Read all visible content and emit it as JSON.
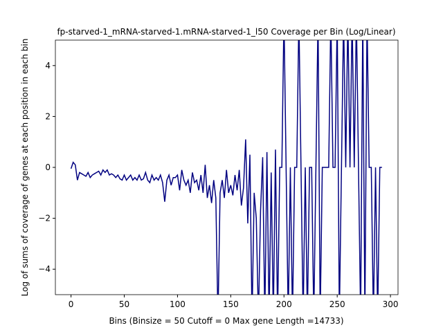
{
  "chart_data": {
    "type": "line",
    "title": "fp-starved-1_mRNA-starved-1.mRNA-starved-1_l50 Coverage per Bin (Log/Linear)",
    "x_label": "Bins  (Binsize = 50 Cutoff = 0 Max gene Length =14733)",
    "y_label": "Log of sums of coverage of genes at each position in each bin",
    "x": [
      0,
      2,
      4,
      6,
      8,
      10,
      12,
      14,
      16,
      18,
      20,
      22,
      24,
      26,
      28,
      30,
      32,
      34,
      36,
      38,
      40,
      42,
      44,
      46,
      48,
      50,
      52,
      54,
      56,
      58,
      60,
      62,
      64,
      66,
      68,
      70,
      72,
      74,
      76,
      78,
      80,
      82,
      84,
      86,
      88,
      90,
      92,
      94,
      96,
      98,
      100,
      102,
      104,
      106,
      108,
      110,
      112,
      114,
      116,
      118,
      120,
      122,
      124,
      126,
      128,
      130,
      132,
      134,
      136,
      138,
      140,
      142,
      144,
      146,
      148,
      150,
      152,
      154,
      156,
      158,
      160,
      162,
      164,
      166,
      168,
      170,
      172,
      174,
      176,
      178,
      180,
      182,
      184,
      186,
      188,
      190,
      192,
      194,
      196,
      198,
      200,
      202,
      204,
      206,
      208,
      210,
      212,
      214,
      216,
      218,
      220,
      222,
      224,
      226,
      228,
      230,
      232,
      234,
      236,
      238,
      240,
      242,
      244,
      246,
      248,
      250,
      252,
      254,
      256,
      258,
      260,
      262,
      264,
      266,
      268,
      270,
      272,
      274,
      276,
      278,
      280,
      282,
      284,
      286,
      288,
      290,
      292
    ],
    "series": [
      {
        "name": "coverage",
        "color": "#000080",
        "values": [
          -0.05,
          0.2,
          0.1,
          -0.5,
          -0.2,
          -0.25,
          -0.3,
          -0.35,
          -0.2,
          -0.4,
          -0.3,
          -0.25,
          -0.2,
          -0.15,
          -0.3,
          -0.1,
          -0.2,
          -0.1,
          -0.3,
          -0.25,
          -0.3,
          -0.4,
          -0.3,
          -0.45,
          -0.5,
          -0.3,
          -0.5,
          -0.4,
          -0.3,
          -0.5,
          -0.4,
          -0.5,
          -0.3,
          -0.5,
          -0.45,
          -0.2,
          -0.5,
          -0.6,
          -0.3,
          -0.5,
          -0.4,
          -0.5,
          -0.3,
          -0.6,
          -1.35,
          -0.5,
          -0.3,
          -0.7,
          -0.4,
          -0.4,
          -0.3,
          -0.9,
          -0.1,
          -0.5,
          -0.7,
          -0.5,
          -1.0,
          -0.2,
          -0.6,
          -0.5,
          -0.9,
          -0.3,
          -1.0,
          0.1,
          -1.2,
          -0.7,
          -1.4,
          -0.5,
          -1.2,
          -6,
          -1.0,
          -0.5,
          -1.2,
          -0.1,
          -1.0,
          -0.7,
          -1.1,
          -0.3,
          -0.9,
          -0.1,
          -1.5,
          -0.8,
          1.1,
          -2.2,
          0.5,
          -6,
          -1.0,
          -2.0,
          -6,
          -1.7,
          0.4,
          -6,
          0.6,
          -6,
          -0.2,
          -6,
          0.7,
          -6,
          0,
          0,
          6,
          0,
          -6,
          0,
          -6,
          0,
          0,
          6,
          0,
          -6,
          0,
          -6,
          0,
          0,
          -6,
          0,
          6,
          -6,
          0,
          0,
          0,
          0,
          6,
          0,
          0,
          6,
          -6,
          0,
          6,
          0,
          6,
          0,
          6,
          0,
          6,
          0,
          -6,
          6,
          -6,
          6,
          0,
          0,
          -6,
          0,
          -6,
          0,
          0
        ]
      }
    ],
    "xlim": [
      -14.7,
      307.1
    ],
    "ylim": [
      -5,
      5
    ],
    "xticks": [
      0,
      50,
      100,
      150,
      200,
      250,
      300
    ],
    "yticks": [
      {
        "value": -4,
        "label": "−4"
      },
      {
        "value": -2,
        "label": "−2"
      },
      0,
      2,
      4
    ]
  }
}
